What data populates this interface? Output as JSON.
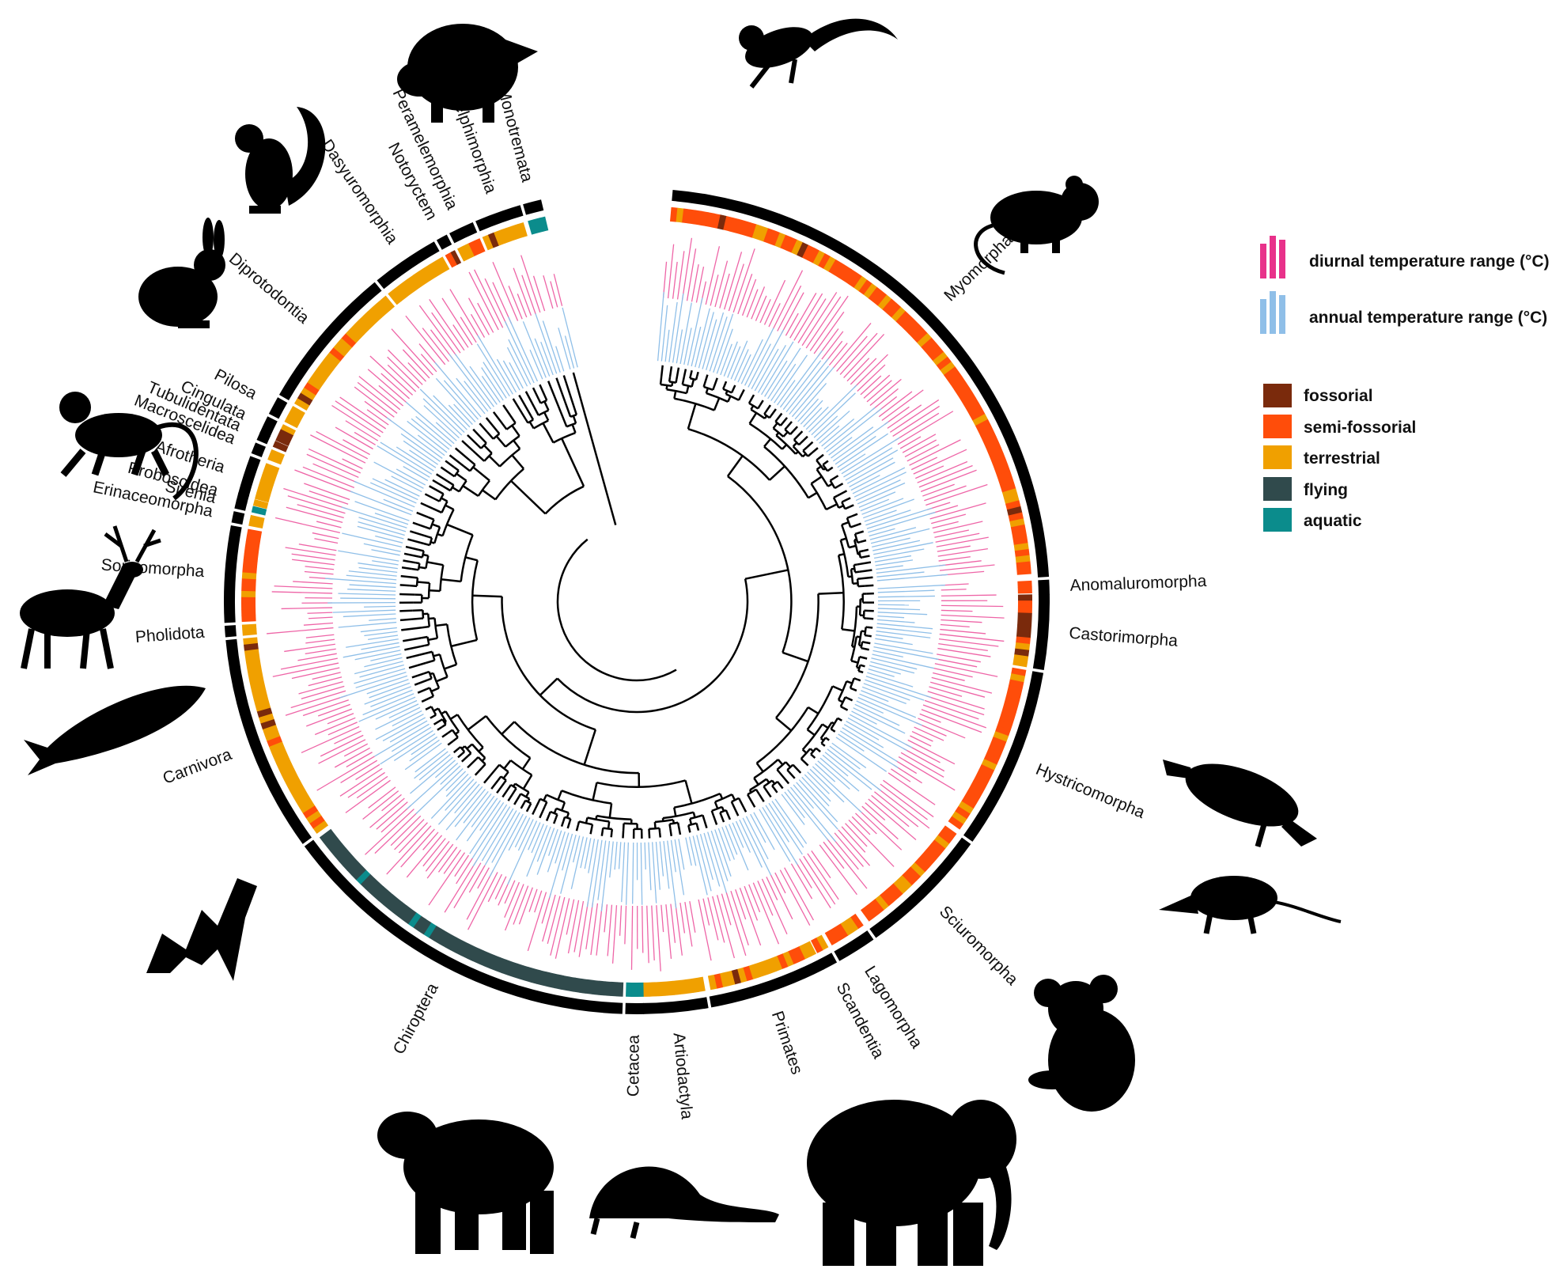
{
  "colors": {
    "diurnal": "#e8318a",
    "annual": "#8fbfe8",
    "fossorial": "#7a2a0c",
    "semi_fossorial": "#ff4d0a",
    "terrestrial": "#f0a000",
    "flying": "#304a4c",
    "aquatic": "#0b8c8c",
    "ring": "#000000"
  },
  "legend": {
    "diurnal": "diurnal temperature range (°C)",
    "annual": "annual temperature range (°C)",
    "lifestyles": [
      {
        "key": "fossorial",
        "label": "fossorial",
        "color": "#7a2a0c"
      },
      {
        "key": "semi_fossorial",
        "label": "semi-fossorial",
        "color": "#ff4d0a"
      },
      {
        "key": "terrestrial",
        "label": "terrestrial",
        "color": "#f0a000"
      },
      {
        "key": "flying",
        "label": "flying",
        "color": "#304a4c"
      },
      {
        "key": "aquatic",
        "label": "aquatic",
        "color": "#0b8c8c"
      }
    ]
  },
  "orders": [
    {
      "name": "Myomorpha",
      "start": 5,
      "end": 86,
      "lifestyle": "semi_fossorial"
    },
    {
      "name": "Anomaluromorpha",
      "start": 87,
      "end": 88.5,
      "lifestyle": "semi_fossorial"
    },
    {
      "name": "Castorimorpha",
      "start": 89,
      "end": 99,
      "lifestyle": "fossorial"
    },
    {
      "name": "Hystricomorpha",
      "start": 100,
      "end": 125,
      "lifestyle": "semi_fossorial"
    },
    {
      "name": "Sciuromorpha",
      "start": 126,
      "end": 144,
      "lifestyle": "semi_fossorial"
    },
    {
      "name": "Lagomorpha",
      "start": 145,
      "end": 150,
      "lifestyle": "semi_fossorial"
    },
    {
      "name": "Scandentia",
      "start": 151,
      "end": 152.5,
      "lifestyle": "terrestrial"
    },
    {
      "name": "Primates",
      "start": 153,
      "end": 169,
      "lifestyle": "terrestrial"
    },
    {
      "name": "Artiodactyla",
      "start": 170,
      "end": 178.5,
      "lifestyle": "terrestrial"
    },
    {
      "name": "Cetacea",
      "start": 179,
      "end": 181,
      "lifestyle": "aquatic"
    },
    {
      "name": "Chiroptera",
      "start": 182,
      "end": 233,
      "lifestyle": "flying"
    },
    {
      "name": "Carnivora",
      "start": 234,
      "end": 264,
      "lifestyle": "terrestrial"
    },
    {
      "name": "Pholidota",
      "start": 265,
      "end": 266,
      "lifestyle": "terrestrial"
    },
    {
      "name": "Soricomorpha",
      "start": 267,
      "end": 280,
      "lifestyle": "semi_fossorial"
    },
    {
      "name": "Erinaceomorpha",
      "start": 281,
      "end": 282,
      "lifestyle": "terrestrial"
    },
    {
      "name": "Sirenia",
      "start": 283,
      "end": 283.7,
      "lifestyle": "aquatic"
    },
    {
      "name": "Proboscidea",
      "start": 284,
      "end": 284.7,
      "lifestyle": "terrestrial"
    },
    {
      "name": "Afrotheria",
      "start": 285,
      "end": 290,
      "lifestyle": "terrestrial"
    },
    {
      "name": "Macroscelidea",
      "start": 291,
      "end": 292,
      "lifestyle": "terrestrial"
    },
    {
      "name": "Tubulidentata",
      "start": 293,
      "end": 293.7,
      "lifestyle": "fossorial"
    },
    {
      "name": "Cingulata",
      "start": 294,
      "end": 296,
      "lifestyle": "fossorial"
    },
    {
      "name": "Pilosa",
      "start": 297,
      "end": 299,
      "lifestyle": "terrestrial"
    },
    {
      "name": "Diprotodontia",
      "start": 300,
      "end": 320,
      "lifestyle": "terrestrial"
    },
    {
      "name": "Dasyuromorphia",
      "start": 321,
      "end": 330,
      "lifestyle": "terrestrial"
    },
    {
      "name": "Notoryctem",
      "start": 331,
      "end": 332,
      "lifestyle": "fossorial"
    },
    {
      "name": "Peramelemorphia",
      "start": 333,
      "end": 336,
      "lifestyle": "semi_fossorial"
    },
    {
      "name": "Didelphimorphia",
      "start": 337,
      "end": 343,
      "lifestyle": "terrestrial"
    },
    {
      "name": "Monotremata",
      "start": 344,
      "end": 346,
      "lifestyle": "aquatic"
    }
  ],
  "silhouettes": [
    "dormouse",
    "anomalure",
    "porcupine",
    "squirrel",
    "rabbit",
    "monkey",
    "deer",
    "whale",
    "bat",
    "bear",
    "pangolin",
    "elephant",
    "koala",
    "opossum",
    "platypus"
  ]
}
